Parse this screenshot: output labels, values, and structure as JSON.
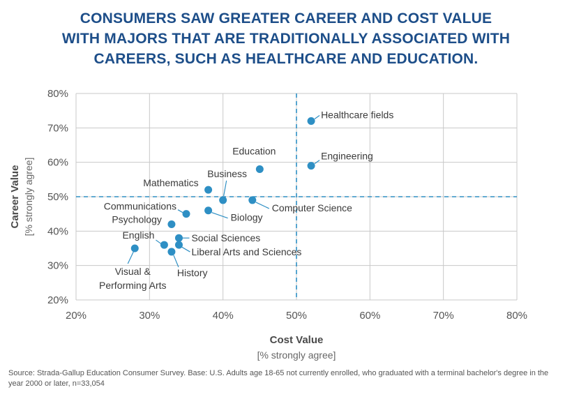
{
  "title_lines": [
    "CONSUMERS SAW GREATER CAREER AND COST VALUE",
    "WITH MAJORS THAT ARE TRADITIONALLY ASSOCIATED WITH",
    "CAREERS, SUCH AS HEALTHCARE AND EDUCATION."
  ],
  "source": "Source: Strada-Gallup Education Consumer Survey. Base: U.S. Adults age 18-65 not currently enrolled,  who graduated with a terminal bachelor's degree in the year 2000 or later, n=33,054",
  "chart_data": {
    "type": "scatter",
    "xlabel": "Cost Value",
    "xlabel_sub": "[% strongly agree]",
    "ylabel": "Career Value",
    "ylabel_sub": "[% strongly agree]",
    "xlim": [
      20,
      80
    ],
    "ylim": [
      20,
      80
    ],
    "x_ticks": [
      20,
      30,
      40,
      50,
      60,
      70,
      80
    ],
    "y_ticks": [
      20,
      30,
      40,
      50,
      60,
      70,
      80
    ],
    "x_tick_labels": [
      "20%",
      "30%",
      "40%",
      "50%",
      "60%",
      "70%",
      "80%"
    ],
    "y_tick_labels": [
      "20%",
      "30%",
      "40%",
      "50%",
      "60%",
      "70%",
      "80%"
    ],
    "grid": true,
    "reference_lines": {
      "x": 50,
      "y": 50
    },
    "point_color": "#2e8fc4",
    "reference_color": "#2e8fc4",
    "points": [
      {
        "label": "Healthcare fields",
        "x": 52,
        "y": 72
      },
      {
        "label": "Engineering",
        "x": 52,
        "y": 59
      },
      {
        "label": "Education",
        "x": 45,
        "y": 58
      },
      {
        "label": "Computer Science",
        "x": 44,
        "y": 49
      },
      {
        "label": "Business",
        "x": 40,
        "y": 49
      },
      {
        "label": "Mathematics",
        "x": 38,
        "y": 52
      },
      {
        "label": "Biology",
        "x": 38,
        "y": 46
      },
      {
        "label": "Communications",
        "x": 35,
        "y": 45
      },
      {
        "label": "Psychology",
        "x": 33,
        "y": 42
      },
      {
        "label": "Social Sciences",
        "x": 34,
        "y": 38
      },
      {
        "label": "Liberal Arts and Sciences",
        "x": 34,
        "y": 36
      },
      {
        "label": "English",
        "x": 32,
        "y": 36
      },
      {
        "label": "History",
        "x": 33,
        "y": 34
      },
      {
        "label": "Visual & Performing Arts",
        "x": 28,
        "y": 35
      }
    ]
  }
}
